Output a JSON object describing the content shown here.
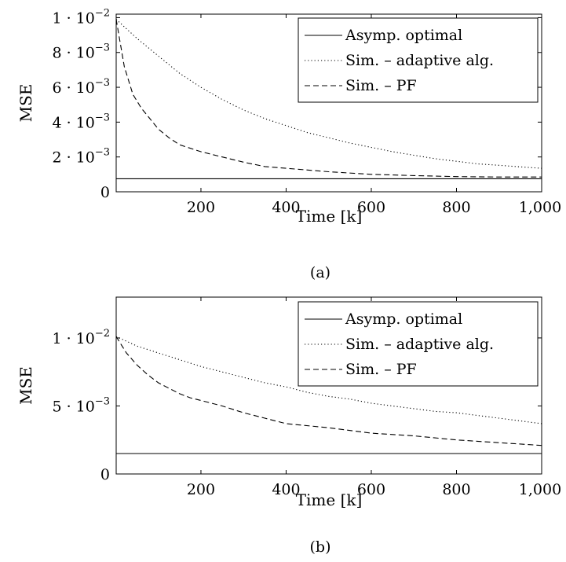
{
  "chart_data": [
    {
      "type": "line",
      "caption": "(a)",
      "xlabel": "Time [k]",
      "ylabel": "MSE",
      "xlim": [
        1,
        1000
      ],
      "ylim": [
        0,
        0.0102
      ],
      "xticks": [
        200,
        400,
        600,
        800,
        1000
      ],
      "xtick_labels": [
        "200",
        "400",
        "600",
        "800",
        "1,000"
      ],
      "yticks": [
        {
          "value": 0,
          "mant": "0",
          "exp": ""
        },
        {
          "value": 0.002,
          "mant": "2 · 10",
          "exp": "−3"
        },
        {
          "value": 0.004,
          "mant": "4 · 10",
          "exp": "−3"
        },
        {
          "value": 0.006,
          "mant": "6 · 10",
          "exp": "−3"
        },
        {
          "value": 0.008,
          "mant": "8 · 10",
          "exp": "−3"
        },
        {
          "value": 0.01,
          "mant": "1 · 10",
          "exp": "−2"
        }
      ],
      "legend_position": "top-right",
      "grid": false,
      "series": [
        {
          "name": "Asymp. optimal",
          "style": "solid",
          "x": [
            1,
            1000
          ],
          "y": [
            0.00075,
            0.00075
          ]
        },
        {
          "name": "Sim. – adaptive alg.",
          "style": "dotted",
          "x": [
            1,
            50,
            100,
            150,
            200,
            250,
            300,
            350,
            400,
            450,
            500,
            550,
            600,
            650,
            700,
            750,
            800,
            850,
            900,
            950,
            1000
          ],
          "y": [
            0.0099,
            0.0088,
            0.0078,
            0.0068,
            0.006,
            0.0053,
            0.0047,
            0.0042,
            0.0038,
            0.0034,
            0.0031,
            0.0028,
            0.00255,
            0.0023,
            0.0021,
            0.0019,
            0.00175,
            0.0016,
            0.00152,
            0.00143,
            0.00135
          ]
        },
        {
          "name": "Sim. – PF",
          "style": "dashed",
          "x": [
            1,
            20,
            40,
            60,
            80,
            100,
            125,
            150,
            200,
            250,
            300,
            350,
            400,
            500,
            600,
            700,
            800,
            900,
            1000
          ],
          "y": [
            0.0099,
            0.0072,
            0.0056,
            0.0048,
            0.0042,
            0.0036,
            0.0031,
            0.0027,
            0.0023,
            0.002,
            0.0017,
            0.00145,
            0.00135,
            0.00115,
            0.001,
            0.00093,
            0.00087,
            0.00085,
            0.00085
          ]
        }
      ]
    },
    {
      "type": "line",
      "caption": "(b)",
      "xlabel": "Time [k]",
      "ylabel": "MSE",
      "xlim": [
        1,
        1000
      ],
      "ylim": [
        0,
        0.013
      ],
      "xticks": [
        200,
        400,
        600,
        800,
        1000
      ],
      "xtick_labels": [
        "200",
        "400",
        "600",
        "800",
        "1,000"
      ],
      "yticks": [
        {
          "value": 0,
          "mant": "0",
          "exp": ""
        },
        {
          "value": 0.005,
          "mant": "5 · 10",
          "exp": "−3"
        },
        {
          "value": 0.01,
          "mant": "1 · 10",
          "exp": "−2"
        }
      ],
      "legend_position": "top-right",
      "grid": false,
      "series": [
        {
          "name": "Asymp. optimal",
          "style": "solid",
          "x": [
            1,
            1000
          ],
          "y": [
            0.0015,
            0.0015
          ]
        },
        {
          "name": "Sim. – adaptive alg.",
          "style": "dotted",
          "x": [
            1,
            50,
            100,
            150,
            200,
            250,
            300,
            350,
            400,
            450,
            500,
            550,
            600,
            650,
            700,
            750,
            800,
            850,
            900,
            950,
            1000
          ],
          "y": [
            0.0101,
            0.0094,
            0.0089,
            0.0084,
            0.0079,
            0.0075,
            0.0071,
            0.0067,
            0.0064,
            0.006,
            0.0057,
            0.0055,
            0.0052,
            0.005,
            0.0048,
            0.0046,
            0.0045,
            0.0043,
            0.0041,
            0.0039,
            0.0037
          ]
        },
        {
          "name": "Sim. – PF",
          "style": "dashed",
          "x": [
            1,
            25,
            50,
            75,
            100,
            125,
            150,
            175,
            200,
            250,
            300,
            350,
            400,
            500,
            600,
            700,
            800,
            900,
            1000
          ],
          "y": [
            0.0101,
            0.0089,
            0.008,
            0.0073,
            0.0067,
            0.0063,
            0.0059,
            0.0056,
            0.0054,
            0.005,
            0.0045,
            0.0041,
            0.0037,
            0.0034,
            0.003,
            0.0028,
            0.0025,
            0.0023,
            0.0021
          ]
        }
      ]
    }
  ]
}
